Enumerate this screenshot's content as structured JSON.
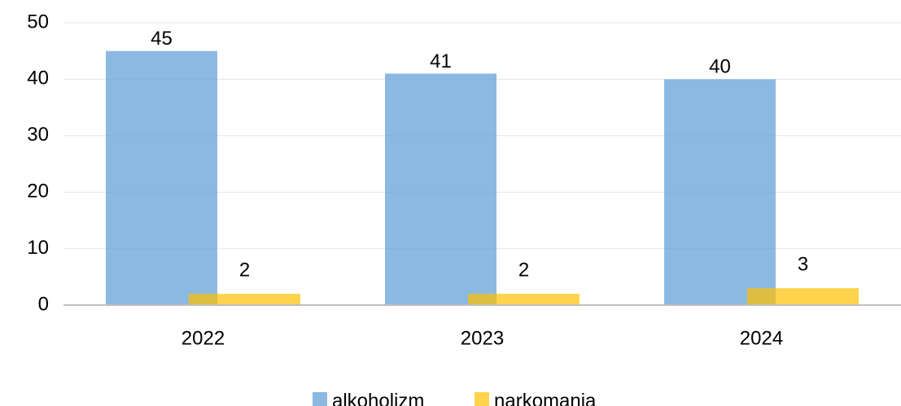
{
  "chart_data": {
    "type": "bar",
    "categories": [
      "2022",
      "2023",
      "2024"
    ],
    "series": [
      {
        "name": "alkoholizm",
        "color": "#5b9bd5",
        "values": [
          45,
          41,
          40
        ]
      },
      {
        "name": "narkomania",
        "color": "#ffc000",
        "values": [
          2,
          2,
          3
        ]
      }
    ],
    "ylim": [
      0,
      50
    ],
    "yticks": [
      0,
      10,
      20,
      30,
      40,
      50
    ],
    "grid": true,
    "legend": "bottom"
  }
}
